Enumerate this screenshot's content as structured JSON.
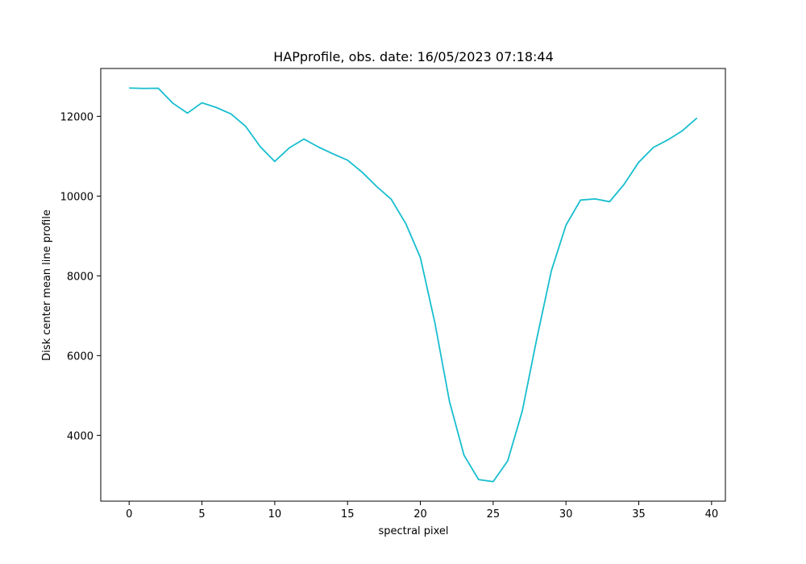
{
  "chart_data": {
    "type": "line",
    "title": "HAPprofile, obs. date: 16/05/2023 07:18:44",
    "xlabel": "spectral pixel",
    "ylabel": "Disk center mean line profile",
    "xlim": [
      -1.95,
      40.95
    ],
    "ylim": [
      2350,
      13200
    ],
    "xticks": [
      0,
      5,
      10,
      15,
      20,
      25,
      30,
      35,
      40
    ],
    "yticks": [
      4000,
      6000,
      8000,
      10000,
      12000
    ],
    "grid": false,
    "series": [
      {
        "color": "#17becf",
        "x": [
          0,
          1,
          2,
          3,
          4,
          5,
          6,
          7,
          8,
          9,
          10,
          11,
          12,
          13,
          14,
          15,
          16,
          17,
          18,
          19,
          20,
          21,
          22,
          23,
          24,
          25,
          26,
          27,
          28,
          29,
          30,
          31,
          32,
          33,
          34,
          35,
          36,
          37,
          38,
          39
        ],
        "y": [
          12710,
          12700,
          12705,
          12330,
          12080,
          12340,
          12220,
          12060,
          11750,
          11240,
          10870,
          11210,
          11430,
          11230,
          11060,
          10900,
          10600,
          10240,
          9920,
          9310,
          8460,
          6820,
          4850,
          3500,
          2890,
          2840,
          3360,
          4610,
          6430,
          8130,
          9270,
          9900,
          9930,
          9860,
          10300,
          10850,
          11220,
          11410,
          11640,
          11960
        ]
      }
    ]
  }
}
